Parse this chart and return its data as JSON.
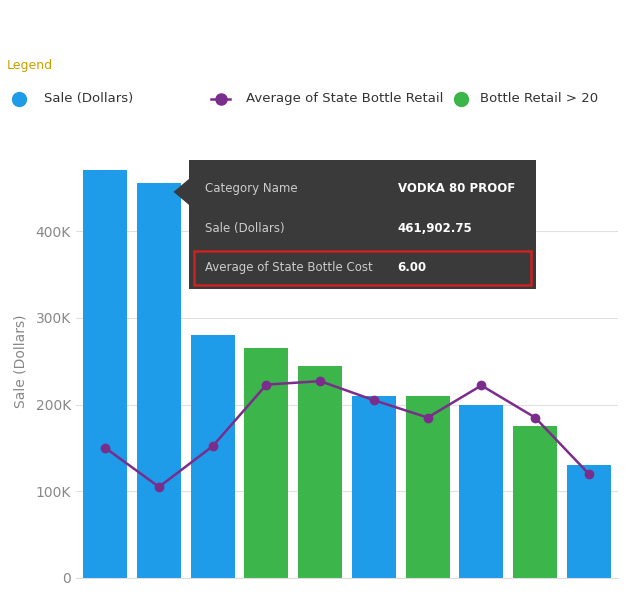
{
  "bar_values": [
    470000,
    455000,
    280000,
    265000,
    245000,
    210000,
    210000,
    200000,
    175000,
    130000
  ],
  "bar_colors": [
    "#1E9BE9",
    "#1E9BE9",
    "#1E9BE9",
    "#3CB54A",
    "#3CB54A",
    "#1E9BE9",
    "#3CB54A",
    "#1E9BE9",
    "#3CB54A",
    "#1E9BE9"
  ],
  "line_values": [
    150000,
    105000,
    152000,
    223000,
    227000,
    205000,
    185000,
    222000,
    185000,
    120000
  ],
  "line_x": [
    0,
    1,
    2,
    3,
    4,
    5,
    6,
    7,
    8,
    9
  ],
  "bar_x": [
    0,
    1,
    2,
    3,
    4,
    5,
    6,
    7,
    8,
    9
  ],
  "ylim": [
    0,
    500000
  ],
  "yticks": [
    0,
    100000,
    200000,
    300000,
    400000
  ],
  "ytick_labels": [
    "0",
    "100K",
    "200K",
    "300K",
    "400K"
  ],
  "ylabel": "Sale (Dollars)",
  "bg_color": "#FFFFFF",
  "plot_bg_color": "#FFFFFF",
  "grid_color": "#E0E0E0",
  "bar_width": 0.82,
  "line_color": "#7B2D8B",
  "line_marker": "o",
  "line_marker_size": 6,
  "legend_sale_color": "#1E9BE9",
  "legend_line_color": "#7B2D8B",
  "legend_green_color": "#3CB54A",
  "legend_sale_label": "Sale (Dollars)",
  "legend_line_label": "Average of State Bottle Retail",
  "legend_green_label": "Bottle Retail > 20",
  "tooltip_bg": "#3A3A3A",
  "tooltip_lines": [
    {
      "label": "Category Name",
      "value": "VODKA 80 PROOF",
      "bold_value": true
    },
    {
      "label": "Sale (Dollars)",
      "value": "461,902.75",
      "bold_value": true
    },
    {
      "label": "Average of State Bottle Cost",
      "value": "6.00",
      "bold_value": true,
      "highlighted": true
    }
  ]
}
